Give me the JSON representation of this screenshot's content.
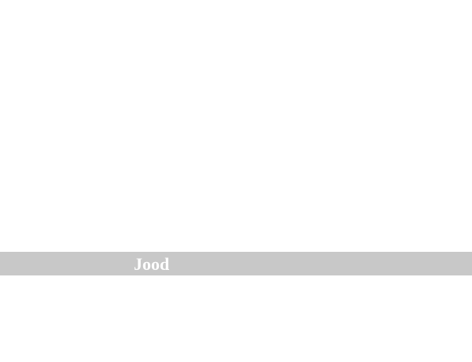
{
  "band": {
    "label": "Jood",
    "background_color": "#c8c8c8",
    "text_color": "#ffffff"
  },
  "page": {
    "background_color": "#ffffff"
  }
}
